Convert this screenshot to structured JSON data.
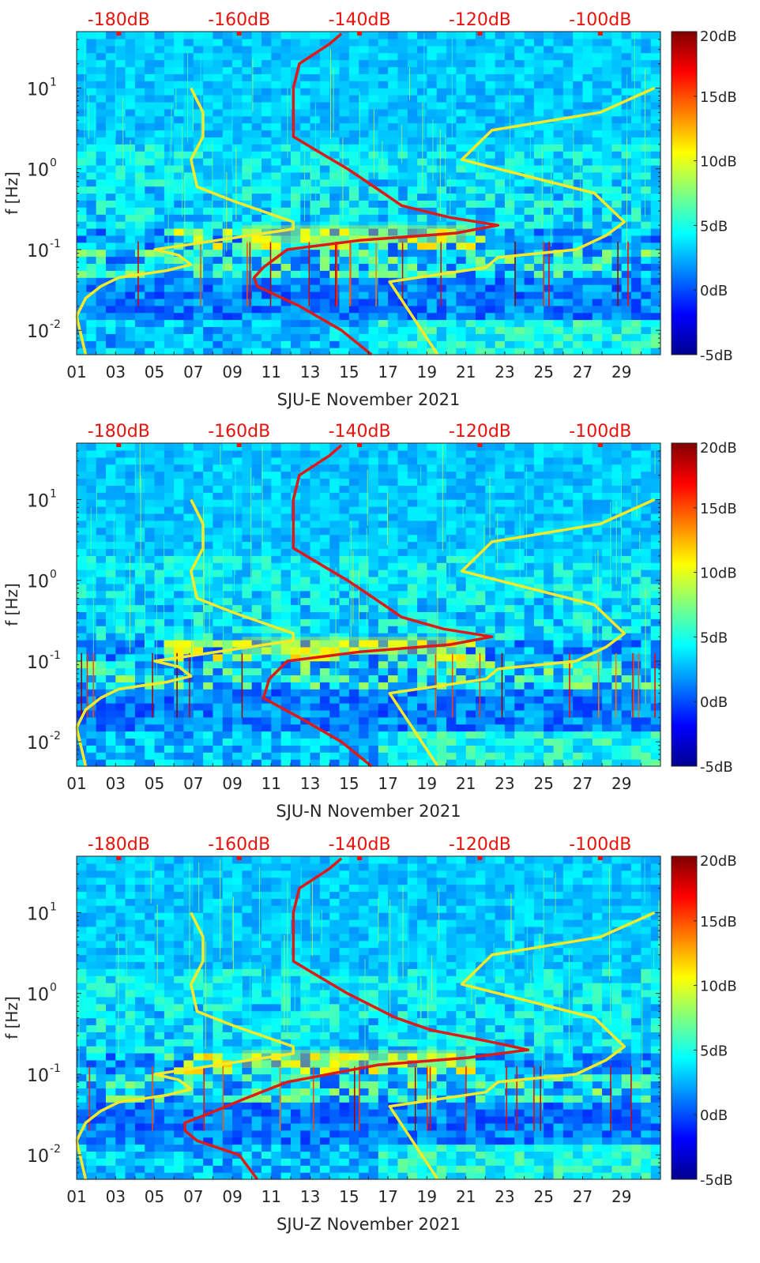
{
  "chart_data": [
    {
      "type": "heatmap",
      "title": "",
      "xlabel": "SJU-E November 2021",
      "ylabel": "f [Hz]",
      "x_ticks": [
        "01",
        "03",
        "05",
        "07",
        "09",
        "11",
        "13",
        "15",
        "17",
        "19",
        "21",
        "23",
        "25",
        "27",
        "29"
      ],
      "xlim": [
        1,
        31
      ],
      "ylim": [
        0.005,
        50
      ],
      "y_scale": "log",
      "y_ticks": [
        {
          "value": 0.01,
          "base": "10",
          "exp": "-2"
        },
        {
          "value": 0.1,
          "base": "10",
          "exp": "-1"
        },
        {
          "value": 1,
          "base": "10",
          "exp": "0"
        },
        {
          "value": 10,
          "base": "10",
          "exp": "1"
        }
      ],
      "top_axis": {
        "labels": [
          "-180dB",
          "-160dB",
          "-140dB",
          "-120dB",
          "-100dB"
        ],
        "values": [
          -180,
          -160,
          -140,
          -120,
          -100
        ],
        "range": [
          -187,
          -90
        ],
        "color": "#e8120c"
      },
      "colorbar": {
        "labels": [
          "20dB",
          "15dB",
          "10dB",
          "5dB",
          "0dB",
          "-5dB"
        ],
        "range": [
          -5,
          20
        ],
        "colormap": "jet"
      },
      "series": [
        {
          "name": "noise-model-low",
          "color": "#f5ea2a",
          "points": [
            [
              0.005,
              -185.5
            ],
            [
              0.015,
              -187
            ],
            [
              0.025,
              -185.5
            ],
            [
              0.035,
              -183
            ],
            [
              0.045,
              -180
            ],
            [
              0.055,
              -172
            ],
            [
              0.065,
              -168
            ],
            [
              0.085,
              -170
            ],
            [
              0.1,
              -174
            ],
            [
              0.18,
              -151
            ],
            [
              0.22,
              -151
            ],
            [
              0.4,
              -161
            ],
            [
              0.6,
              -167
            ],
            [
              1.3,
              -168
            ],
            [
              2.5,
              -166
            ],
            [
              5,
              -166
            ],
            [
              10,
              -168
            ]
          ]
        },
        {
          "name": "noise-model-high",
          "color": "#f5ea2a",
          "points": [
            [
              0.005,
              -127
            ],
            [
              0.04,
              -135
            ],
            [
              0.06,
              -119
            ],
            [
              0.08,
              -117
            ],
            [
              0.1,
              -104
            ],
            [
              0.15,
              -99
            ],
            [
              0.22,
              -96
            ],
            [
              0.5,
              -101
            ],
            [
              1.3,
              -123
            ],
            [
              3,
              -118
            ],
            [
              5,
              -100
            ],
            [
              10,
              -91
            ]
          ]
        },
        {
          "name": "median-psd",
          "color": "#dd1a16",
          "points": [
            [
              0.005,
              -138
            ],
            [
              0.01,
              -143
            ],
            [
              0.02,
              -150
            ],
            [
              0.035,
              -157
            ],
            [
              0.045,
              -157.5
            ],
            [
              0.06,
              -156
            ],
            [
              0.1,
              -152
            ],
            [
              0.13,
              -140
            ],
            [
              0.16,
              -124
            ],
            [
              0.2,
              -117
            ],
            [
              0.25,
              -125
            ],
            [
              0.35,
              -133
            ],
            [
              0.5,
              -136
            ],
            [
              1.0,
              -142
            ],
            [
              1.5,
              -146
            ],
            [
              2.5,
              -151
            ],
            [
              4,
              -151
            ],
            [
              6,
              -151
            ],
            [
              10,
              -151
            ],
            [
              20,
              -150
            ],
            [
              35,
              -145
            ],
            [
              47,
              -143
            ]
          ]
        }
      ]
    },
    {
      "type": "heatmap",
      "title": "",
      "xlabel": "SJU-N November 2021",
      "ylabel": "f [Hz]",
      "x_ticks": [
        "01",
        "03",
        "05",
        "07",
        "09",
        "11",
        "13",
        "15",
        "17",
        "19",
        "21",
        "23",
        "25",
        "27",
        "29"
      ],
      "xlim": [
        1,
        31
      ],
      "ylim": [
        0.005,
        50
      ],
      "y_scale": "log",
      "y_ticks": [
        {
          "value": 0.01,
          "base": "10",
          "exp": "-2"
        },
        {
          "value": 0.1,
          "base": "10",
          "exp": "-1"
        },
        {
          "value": 1,
          "base": "10",
          "exp": "0"
        },
        {
          "value": 10,
          "base": "10",
          "exp": "1"
        }
      ],
      "top_axis": {
        "labels": [
          "-180dB",
          "-160dB",
          "-140dB",
          "-120dB",
          "-100dB"
        ],
        "values": [
          -180,
          -160,
          -140,
          -120,
          -100
        ],
        "range": [
          -187,
          -90
        ],
        "color": "#e8120c"
      },
      "colorbar": {
        "labels": [
          "20dB",
          "15dB",
          "10dB",
          "5dB",
          "0dB",
          "-5dB"
        ],
        "range": [
          -5,
          20
        ],
        "colormap": "jet"
      },
      "series": [
        {
          "name": "noise-model-low",
          "color": "#f5ea2a",
          "points": [
            [
              0.005,
              -185.5
            ],
            [
              0.015,
              -187
            ],
            [
              0.025,
              -185.5
            ],
            [
              0.035,
              -183
            ],
            [
              0.045,
              -180
            ],
            [
              0.055,
              -172
            ],
            [
              0.065,
              -168
            ],
            [
              0.085,
              -170
            ],
            [
              0.1,
              -174
            ],
            [
              0.18,
              -151
            ],
            [
              0.22,
              -151
            ],
            [
              0.4,
              -161
            ],
            [
              0.6,
              -167
            ],
            [
              1.3,
              -168
            ],
            [
              2.5,
              -166
            ],
            [
              5,
              -166
            ],
            [
              10,
              -168
            ]
          ]
        },
        {
          "name": "noise-model-high",
          "color": "#f5ea2a",
          "points": [
            [
              0.005,
              -127
            ],
            [
              0.04,
              -135
            ],
            [
              0.06,
              -119
            ],
            [
              0.08,
              -117
            ],
            [
              0.1,
              -104
            ],
            [
              0.15,
              -99
            ],
            [
              0.22,
              -96
            ],
            [
              0.5,
              -101
            ],
            [
              1.3,
              -123
            ],
            [
              3,
              -118
            ],
            [
              5,
              -100
            ],
            [
              10,
              -91
            ]
          ]
        },
        {
          "name": "median-psd",
          "color": "#dd1a16",
          "points": [
            [
              0.005,
              -138
            ],
            [
              0.01,
              -143
            ],
            [
              0.02,
              -150
            ],
            [
              0.035,
              -156
            ],
            [
              0.045,
              -155.5
            ],
            [
              0.06,
              -155
            ],
            [
              0.1,
              -152
            ],
            [
              0.13,
              -140
            ],
            [
              0.16,
              -125
            ],
            [
              0.2,
              -118
            ],
            [
              0.25,
              -126
            ],
            [
              0.35,
              -133
            ],
            [
              0.5,
              -136
            ],
            [
              1.0,
              -142
            ],
            [
              1.5,
              -146
            ],
            [
              2.5,
              -151
            ],
            [
              4,
              -151
            ],
            [
              6,
              -151
            ],
            [
              10,
              -151
            ],
            [
              20,
              -150
            ],
            [
              35,
              -145
            ],
            [
              47,
              -143
            ]
          ]
        }
      ]
    },
    {
      "type": "heatmap",
      "title": "",
      "xlabel": "SJU-Z November 2021",
      "ylabel": "f [Hz]",
      "x_ticks": [
        "01",
        "03",
        "05",
        "07",
        "09",
        "11",
        "13",
        "15",
        "17",
        "19",
        "21",
        "23",
        "25",
        "27",
        "29"
      ],
      "xlim": [
        1,
        31
      ],
      "ylim": [
        0.005,
        50
      ],
      "y_scale": "log",
      "y_ticks": [
        {
          "value": 0.01,
          "base": "10",
          "exp": "-2"
        },
        {
          "value": 0.1,
          "base": "10",
          "exp": "-1"
        },
        {
          "value": 1,
          "base": "10",
          "exp": "0"
        },
        {
          "value": 10,
          "base": "10",
          "exp": "1"
        }
      ],
      "top_axis": {
        "labels": [
          "-180dB",
          "-160dB",
          "-140dB",
          "-120dB",
          "-100dB"
        ],
        "values": [
          -180,
          -160,
          -140,
          -120,
          -100
        ],
        "range": [
          -187,
          -90
        ],
        "color": "#e8120c"
      },
      "colorbar": {
        "labels": [
          "20dB",
          "15dB",
          "10dB",
          "5dB",
          "0dB",
          "-5dB"
        ],
        "range": [
          -5,
          20
        ],
        "colormap": "jet"
      },
      "series": [
        {
          "name": "noise-model-low",
          "color": "#f5ea2a",
          "points": [
            [
              0.005,
              -185.5
            ],
            [
              0.015,
              -187
            ],
            [
              0.025,
              -185.5
            ],
            [
              0.035,
              -183
            ],
            [
              0.045,
              -180
            ],
            [
              0.055,
              -172
            ],
            [
              0.065,
              -168
            ],
            [
              0.085,
              -170
            ],
            [
              0.1,
              -174
            ],
            [
              0.18,
              -151
            ],
            [
              0.22,
              -151
            ],
            [
              0.4,
              -161
            ],
            [
              0.6,
              -167
            ],
            [
              1.3,
              -168
            ],
            [
              2.5,
              -166
            ],
            [
              5,
              -166
            ],
            [
              10,
              -168
            ]
          ]
        },
        {
          "name": "noise-model-high",
          "color": "#f5ea2a",
          "points": [
            [
              0.005,
              -127
            ],
            [
              0.04,
              -135
            ],
            [
              0.06,
              -119
            ],
            [
              0.08,
              -117
            ],
            [
              0.1,
              -104
            ],
            [
              0.15,
              -99
            ],
            [
              0.22,
              -96
            ],
            [
              0.5,
              -101
            ],
            [
              1.3,
              -123
            ],
            [
              3,
              -118
            ],
            [
              5,
              -100
            ],
            [
              10,
              -91
            ]
          ]
        },
        {
          "name": "median-psd",
          "color": "#dd1a16",
          "points": [
            [
              0.005,
              -157
            ],
            [
              0.01,
              -160
            ],
            [
              0.015,
              -167
            ],
            [
              0.02,
              -169
            ],
            [
              0.025,
              -169
            ],
            [
              0.035,
              -164
            ],
            [
              0.05,
              -159
            ],
            [
              0.08,
              -152
            ],
            [
              0.13,
              -137
            ],
            [
              0.16,
              -122
            ],
            [
              0.2,
              -112
            ],
            [
              0.25,
              -118
            ],
            [
              0.35,
              -128
            ],
            [
              0.5,
              -134
            ],
            [
              1.0,
              -142
            ],
            [
              1.5,
              -146
            ],
            [
              2.5,
              -151
            ],
            [
              4,
              -151
            ],
            [
              6,
              -151
            ],
            [
              10,
              -151
            ],
            [
              20,
              -150
            ],
            [
              35,
              -145
            ],
            [
              47,
              -143
            ]
          ]
        }
      ]
    }
  ]
}
